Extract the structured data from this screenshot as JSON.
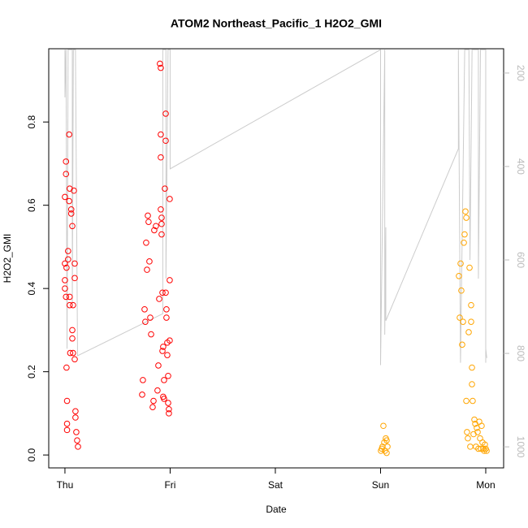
{
  "chart_data": {
    "type": "scatter",
    "title": "ATOM2 Northeast_Pacific_1 H2O2_GMI",
    "x_label": "Date",
    "y_label": "H2O2_GMI",
    "xlim": [
      -0.154,
      4.17
    ],
    "xticks": [
      {
        "value": 0,
        "label": "Thu"
      },
      {
        "value": 1,
        "label": "Fri"
      },
      {
        "value": 2,
        "label": "Sat"
      },
      {
        "value": 3,
        "label": "Sun"
      },
      {
        "value": 4,
        "label": "Mon"
      }
    ],
    "ylim": [
      -0.031,
      0.976
    ],
    "yticks": [
      {
        "value": 0,
        "label": "0.0"
      },
      0.2,
      0.4,
      0.6,
      0.8
    ],
    "y2lim": [
      1045,
      148
    ],
    "y2ticks": [
      200,
      400,
      600,
      800,
      1000
    ],
    "series": [
      {
        "color": "#ff0000",
        "x": [
          0,
          0.01,
          0.01,
          0,
          0,
          0,
          0.01,
          0.015,
          0.02,
          0.02,
          0.02,
          0.015,
          0.03,
          0.03,
          0.04,
          0.04,
          0.045,
          0.045,
          0.045,
          0.05,
          0.06,
          0.06,
          0.07,
          0.07,
          0.07,
          0.077,
          0.077,
          0.085,
          0.093,
          0.093,
          0.093,
          0.1,
          0.1,
          0.108,
          0.116,
          0.124,
          0.734,
          0.741,
          0.757,
          0.764,
          0.772,
          0.78,
          0.788,
          0.795,
          0.803,
          0.811,
          0.819,
          0.834,
          0.842,
          0.849,
          0.865,
          0.88,
          0.888,
          0.896,
          0.903,
          0.911,
          0.911,
          0.911,
          0.911,
          0.919,
          0.919,
          0.919,
          0.927,
          0.927,
          0.934,
          0.934,
          0.942,
          0.942,
          0.95,
          0.958,
          0.958,
          0.958,
          0.965,
          0.965,
          0.973,
          0.973,
          0.981,
          0.981,
          0.988,
          0.988,
          0.996,
          0.996,
          0.996
        ],
        "values": [
          0.62,
          0.705,
          0.675,
          0.46,
          0.42,
          0.4,
          0.38,
          0.45,
          0.13,
          0.075,
          0.06,
          0.21,
          0.49,
          0.47,
          0.77,
          0.61,
          0.64,
          0.38,
          0.36,
          0.245,
          0.59,
          0.58,
          0.55,
          0.3,
          0.28,
          0.36,
          0.245,
          0.635,
          0.46,
          0.425,
          0.23,
          0.105,
          0.09,
          0.055,
          0.035,
          0.02,
          0.145,
          0.18,
          0.35,
          0.32,
          0.51,
          0.445,
          0.575,
          0.56,
          0.465,
          0.33,
          0.29,
          0.115,
          0.13,
          0.54,
          0.55,
          0.155,
          0.215,
          0.375,
          0.94,
          0.93,
          0.77,
          0.715,
          0.59,
          0.57,
          0.555,
          0.53,
          0.25,
          0.39,
          0.26,
          0.14,
          0.18,
          0.135,
          0.64,
          0.82,
          0.755,
          0.39,
          0.35,
          0.33,
          0.27,
          0.24,
          0.19,
          0.125,
          0.11,
          0.1,
          0.615,
          0.42,
          0.275
        ]
      },
      {
        "color": "#ffa500",
        "x": [
          3.004,
          3.012,
          3.019,
          3.027,
          3.035,
          3.042,
          3.05,
          3.058,
          3.058,
          3.066,
          3.745,
          3.753,
          3.761,
          3.768,
          3.776,
          3.784,
          3.792,
          3.799,
          3.807,
          3.815,
          3.815,
          3.822,
          3.83,
          3.838,
          3.846,
          3.853,
          3.861,
          3.861,
          3.869,
          3.869,
          3.876,
          3.884,
          3.892,
          3.9,
          3.907,
          3.915,
          3.923,
          3.93,
          3.938,
          3.946,
          3.954,
          3.961,
          3.969,
          3.977,
          3.985,
          3.992,
          4,
          4.008
        ],
        "values": [
          0.01,
          0.015,
          0.02,
          0.07,
          0.03,
          0.01,
          0.04,
          0.035,
          0.005,
          0.02,
          0.43,
          0.33,
          0.46,
          0.395,
          0.265,
          0.32,
          0.51,
          0.53,
          0.585,
          0.57,
          0.13,
          0.055,
          0.04,
          0.295,
          0.45,
          0.02,
          0.36,
          0.32,
          0.21,
          0.17,
          0.13,
          0.05,
          0.085,
          0.075,
          0.02,
          0.065,
          0.055,
          0.015,
          0.08,
          0.04,
          0.015,
          0.07,
          0.03,
          0.015,
          0.01,
          0.025,
          0.015,
          0.01
        ]
      },
      {
        "type": "line",
        "color": "#cccccc",
        "axis": "y2",
        "x": [
          0,
          0,
          0.01,
          0.02,
          0.03,
          0.07,
          0.07,
          0.08,
          0.1,
          0.12,
          0.93,
          0.93,
          0.96,
          0.96,
          0.98,
          1.0,
          1.0,
          3.0,
          3.0,
          3.04,
          3.04,
          3.05,
          3.05,
          3.74,
          3.74,
          3.76,
          3.8,
          3.84,
          3.85,
          3.87,
          3.93,
          3.93,
          3.95,
          4.0,
          4.0,
          4.0,
          4.01
        ],
        "values": [
          150,
          252,
          150,
          790,
          150,
          150,
          700,
          150,
          150,
          805,
          715,
          150,
          150,
          640,
          150,
          150,
          405,
          150,
          825,
          150,
          760,
          530,
          730,
          362,
          150,
          820,
          150,
          150,
          600,
          150,
          150,
          640,
          150,
          150,
          820,
          790,
          810
        ]
      }
    ]
  }
}
